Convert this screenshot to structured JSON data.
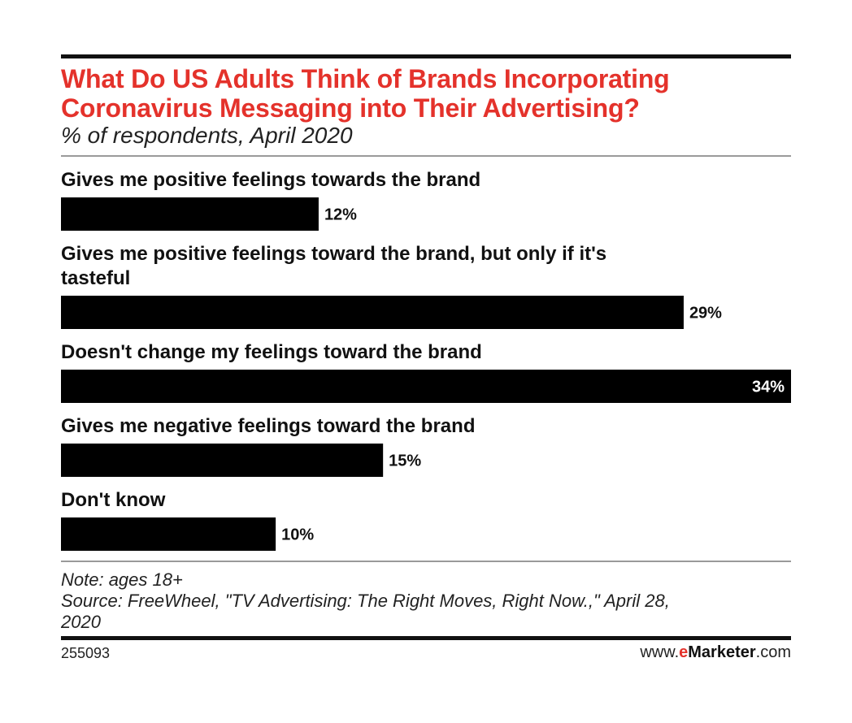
{
  "header": {
    "title_line1": "What Do US Adults Think of Brands Incorporating",
    "title_line2": "Coronavirus Messaging into Their Advertising?",
    "subtitle": "% of respondents, April 2020"
  },
  "footer": {
    "note": "Note: ages 18+",
    "source_line1": "Source: FreeWheel, \"TV Advertising: The Right Moves, Right Now.,\" April 28,",
    "source_line2": "2020",
    "chart_id": "255093",
    "brand_prefix": "www.",
    "brand_e": "e",
    "brand_marketer": "Marketer",
    "brand_suffix": ".com"
  },
  "colors": {
    "title": "#e4322b",
    "bar": "#000000",
    "label_outside": "#111111",
    "label_inside": "#ffffff"
  },
  "chart_data": {
    "type": "bar",
    "orientation": "horizontal",
    "categories": [
      [
        "Gives me positive feelings towards the brand"
      ],
      [
        "Gives me positive feelings toward the brand, but only if it's",
        "tasteful"
      ],
      [
        "Doesn't change my feelings toward the brand"
      ],
      [
        "Gives me negative feelings toward the brand"
      ],
      [
        "Don't know"
      ]
    ],
    "values": [
      12,
      29,
      34,
      15,
      10
    ],
    "value_labels": [
      "12%",
      "29%",
      "34%",
      "15%",
      "10%"
    ],
    "unit": "%",
    "xlim": [
      0,
      34
    ],
    "grid": false,
    "legend": false
  }
}
